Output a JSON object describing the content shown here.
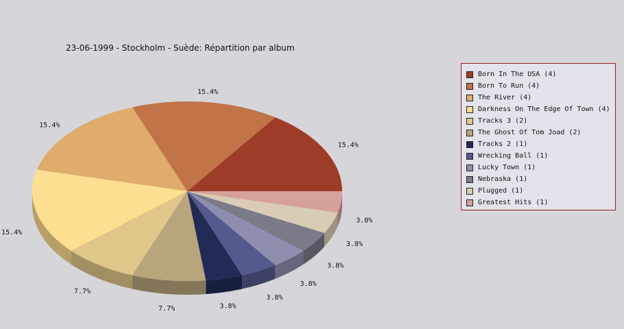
{
  "chart_data": {
    "type": "pie",
    "title": "23-06-1999 - Stockholm - Suède:  Répartition par album",
    "categories": [
      "Born In The USA (4)",
      "Born To Run (4)",
      "The River (4)",
      "Darkness On The Edge Of Town (4)",
      "Tracks 3 (2)",
      "The Ghost Of Tom Joad (2)",
      "Tracks 2 (1)",
      "Wrecking Ball (1)",
      "Lucky Town (1)",
      "Nebraska (1)",
      "Plugged (1)",
      "Greatest Hits (1)"
    ],
    "values": [
      4,
      4,
      4,
      4,
      2,
      2,
      1,
      1,
      1,
      1,
      1,
      1
    ],
    "labels": [
      "15.4%",
      "15.4%",
      "15.4%",
      "15.4%",
      "7.7%",
      "7.7%",
      "3.8%",
      "3.8%",
      "3.8%",
      "3.8%",
      "3.8%",
      "3.8%"
    ],
    "colors": [
      "#9e3d27",
      "#c07448",
      "#e0ac6c",
      "#fede90",
      "#dfc689",
      "#b8a57c",
      "#222a56",
      "#555a8e",
      "#8e8faf",
      "#7a7a88",
      "#d8ccb4",
      "#d6a19a"
    ],
    "legend_placement": "right",
    "three_d": true
  }
}
